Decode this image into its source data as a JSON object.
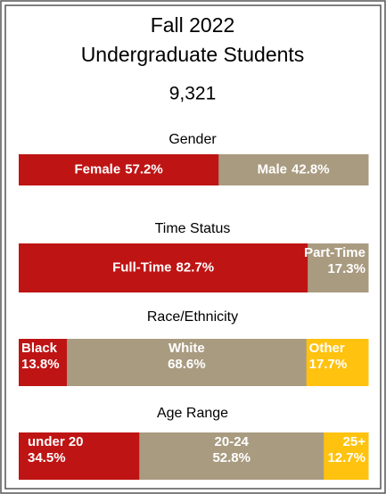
{
  "title": "Fall 2022",
  "subtitle": "Undergraduate Students",
  "total": "9,321",
  "chart_data": [
    {
      "type": "stacked_bar",
      "title": "Gender",
      "categories": [
        "Female",
        "Male"
      ],
      "values": [
        57.2,
        42.8
      ],
      "value_labels": [
        "57.2%",
        "42.8%"
      ],
      "colors": [
        "#bf1414",
        "#a99b80"
      ]
    },
    {
      "type": "stacked_bar",
      "title": "Time Status",
      "categories": [
        "Full-Time",
        "Part-Time"
      ],
      "values": [
        82.7,
        17.3
      ],
      "value_labels": [
        "82.7%",
        "17.3%"
      ],
      "colors": [
        "#bf1414",
        "#a99b80"
      ]
    },
    {
      "type": "stacked_bar",
      "title": "Race/Ethnicity",
      "categories": [
        "Black",
        "White",
        "Other"
      ],
      "values": [
        13.8,
        68.6,
        17.7
      ],
      "value_labels": [
        "13.8%",
        "68.6%",
        "17.7%"
      ],
      "colors": [
        "#bf1414",
        "#a99b80",
        "#ffc20e"
      ]
    },
    {
      "type": "stacked_bar",
      "title": "Age Range",
      "categories": [
        "under 20",
        "20-24",
        "25+"
      ],
      "values": [
        34.5,
        52.8,
        12.7
      ],
      "value_labels": [
        "34.5%",
        "52.8%",
        "12.7%"
      ],
      "colors": [
        "#bf1414",
        "#a99b80",
        "#ffc20e"
      ]
    }
  ]
}
